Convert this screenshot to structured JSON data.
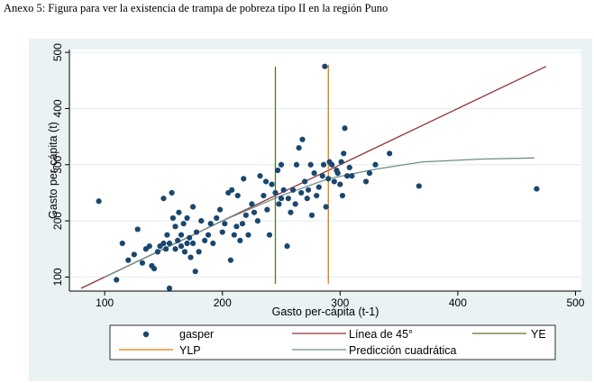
{
  "caption": "Anexo 5: Figura para ver la existencia de trampa de pobreza tipo II en la región Puno",
  "chart_data": {
    "type": "scatter",
    "title": "",
    "xlabel": "Gasto per-cápita (t-1)",
    "ylabel": "Gasto per-cápita (t)",
    "xlim": [
      70,
      505
    ],
    "ylim": [
      75,
      505
    ],
    "xticks": [
      "100",
      "200",
      "300",
      "400",
      "500"
    ],
    "yticks": [
      "100",
      "200",
      "300",
      "400",
      "500"
    ],
    "grid": true,
    "legend_position": "bottom",
    "legend": [
      "gasper",
      "Línea de 45°",
      "YE",
      "YLP",
      "Predicción cuadrática"
    ],
    "colors": {
      "gasper": "#1a476f",
      "line45": "#90353b",
      "YE": "#55752f",
      "YLP": "#e37e00",
      "quad": "#6e8e84",
      "background": "#eaf2f3"
    },
    "series": [
      {
        "name": "gasper",
        "points": [
          [
            95,
            235
          ],
          [
            110,
            95
          ],
          [
            115,
            160
          ],
          [
            120,
            130
          ],
          [
            125,
            140
          ],
          [
            128,
            185
          ],
          [
            132,
            125
          ],
          [
            135,
            150
          ],
          [
            138,
            155
          ],
          [
            140,
            120
          ],
          [
            142,
            115
          ],
          [
            145,
            145
          ],
          [
            147,
            155
          ],
          [
            150,
            160
          ],
          [
            150,
            240
          ],
          [
            152,
            150
          ],
          [
            153,
            175
          ],
          [
            155,
            160
          ],
          [
            155,
            80
          ],
          [
            157,
            250
          ],
          [
            158,
            205
          ],
          [
            160,
            150
          ],
          [
            160,
            190
          ],
          [
            162,
            165
          ],
          [
            163,
            215
          ],
          [
            165,
            155
          ],
          [
            165,
            175
          ],
          [
            167,
            195
          ],
          [
            168,
            145
          ],
          [
            170,
            160
          ],
          [
            170,
            205
          ],
          [
            172,
            170
          ],
          [
            173,
            135
          ],
          [
            175,
            225
          ],
          [
            175,
            160
          ],
          [
            177,
            110
          ],
          [
            178,
            180
          ],
          [
            180,
            145
          ],
          [
            182,
            200
          ],
          [
            185,
            165
          ],
          [
            188,
            175
          ],
          [
            190,
            195
          ],
          [
            192,
            160
          ],
          [
            195,
            205
          ],
          [
            198,
            220
          ],
          [
            200,
            180
          ],
          [
            202,
            195
          ],
          [
            205,
            250
          ],
          [
            207,
            130
          ],
          [
            208,
            255
          ],
          [
            210,
            175
          ],
          [
            212,
            190
          ],
          [
            213,
            245
          ],
          [
            215,
            165
          ],
          [
            217,
            195
          ],
          [
            218,
            275
          ],
          [
            220,
            210
          ],
          [
            222,
            175
          ],
          [
            225,
            230
          ],
          [
            227,
            215
          ],
          [
            230,
            200
          ],
          [
            232,
            280
          ],
          [
            235,
            245
          ],
          [
            237,
            270
          ],
          [
            238,
            220
          ],
          [
            240,
            175
          ],
          [
            242,
            265
          ],
          [
            245,
            250
          ],
          [
            247,
            290
          ],
          [
            248,
            230
          ],
          [
            250,
            240
          ],
          [
            250,
            300
          ],
          [
            252,
            255
          ],
          [
            255,
            155
          ],
          [
            256,
            240
          ],
          [
            258,
            215
          ],
          [
            260,
            255
          ],
          [
            262,
            230
          ],
          [
            263,
            300
          ],
          [
            265,
            330
          ],
          [
            267,
            250
          ],
          [
            268,
            345
          ],
          [
            270,
            270
          ],
          [
            272,
            240
          ],
          [
            273,
            255
          ],
          [
            275,
            300
          ],
          [
            276,
            210
          ],
          [
            278,
            285
          ],
          [
            280,
            245
          ],
          [
            282,
            260
          ],
          [
            285,
            280
          ],
          [
            286,
            300
          ],
          [
            287,
            475
          ],
          [
            288,
            225
          ],
          [
            290,
            275
          ],
          [
            291,
            305
          ],
          [
            293,
            300
          ],
          [
            295,
            270
          ],
          [
            297,
            290
          ],
          [
            298,
            285
          ],
          [
            300,
            265
          ],
          [
            301,
            305
          ],
          [
            302,
            245
          ],
          [
            303,
            320
          ],
          [
            304,
            365
          ],
          [
            306,
            280
          ],
          [
            308,
            295
          ],
          [
            310,
            280
          ],
          [
            322,
            270
          ],
          [
            325,
            285
          ],
          [
            330,
            300
          ],
          [
            342,
            320
          ],
          [
            367,
            262
          ],
          [
            467,
            257
          ]
        ]
      },
      {
        "name": "Línea de 45°",
        "x": [
          80,
          475
        ],
        "y": [
          80,
          475
        ]
      },
      {
        "name": "YE",
        "x": [
          245,
          245
        ],
        "y": [
          88,
          475
        ]
      },
      {
        "name": "YLP",
        "x": [
          290,
          290
        ],
        "y": [
          88,
          478
        ]
      },
      {
        "name": "Predicción cuadrática",
        "x": [
          100,
          150,
          200,
          250,
          290,
          330,
          370,
          420,
          465
        ],
        "y": [
          100,
          150,
          200,
          245,
          275,
          292,
          305,
          310,
          312
        ]
      }
    ]
  }
}
